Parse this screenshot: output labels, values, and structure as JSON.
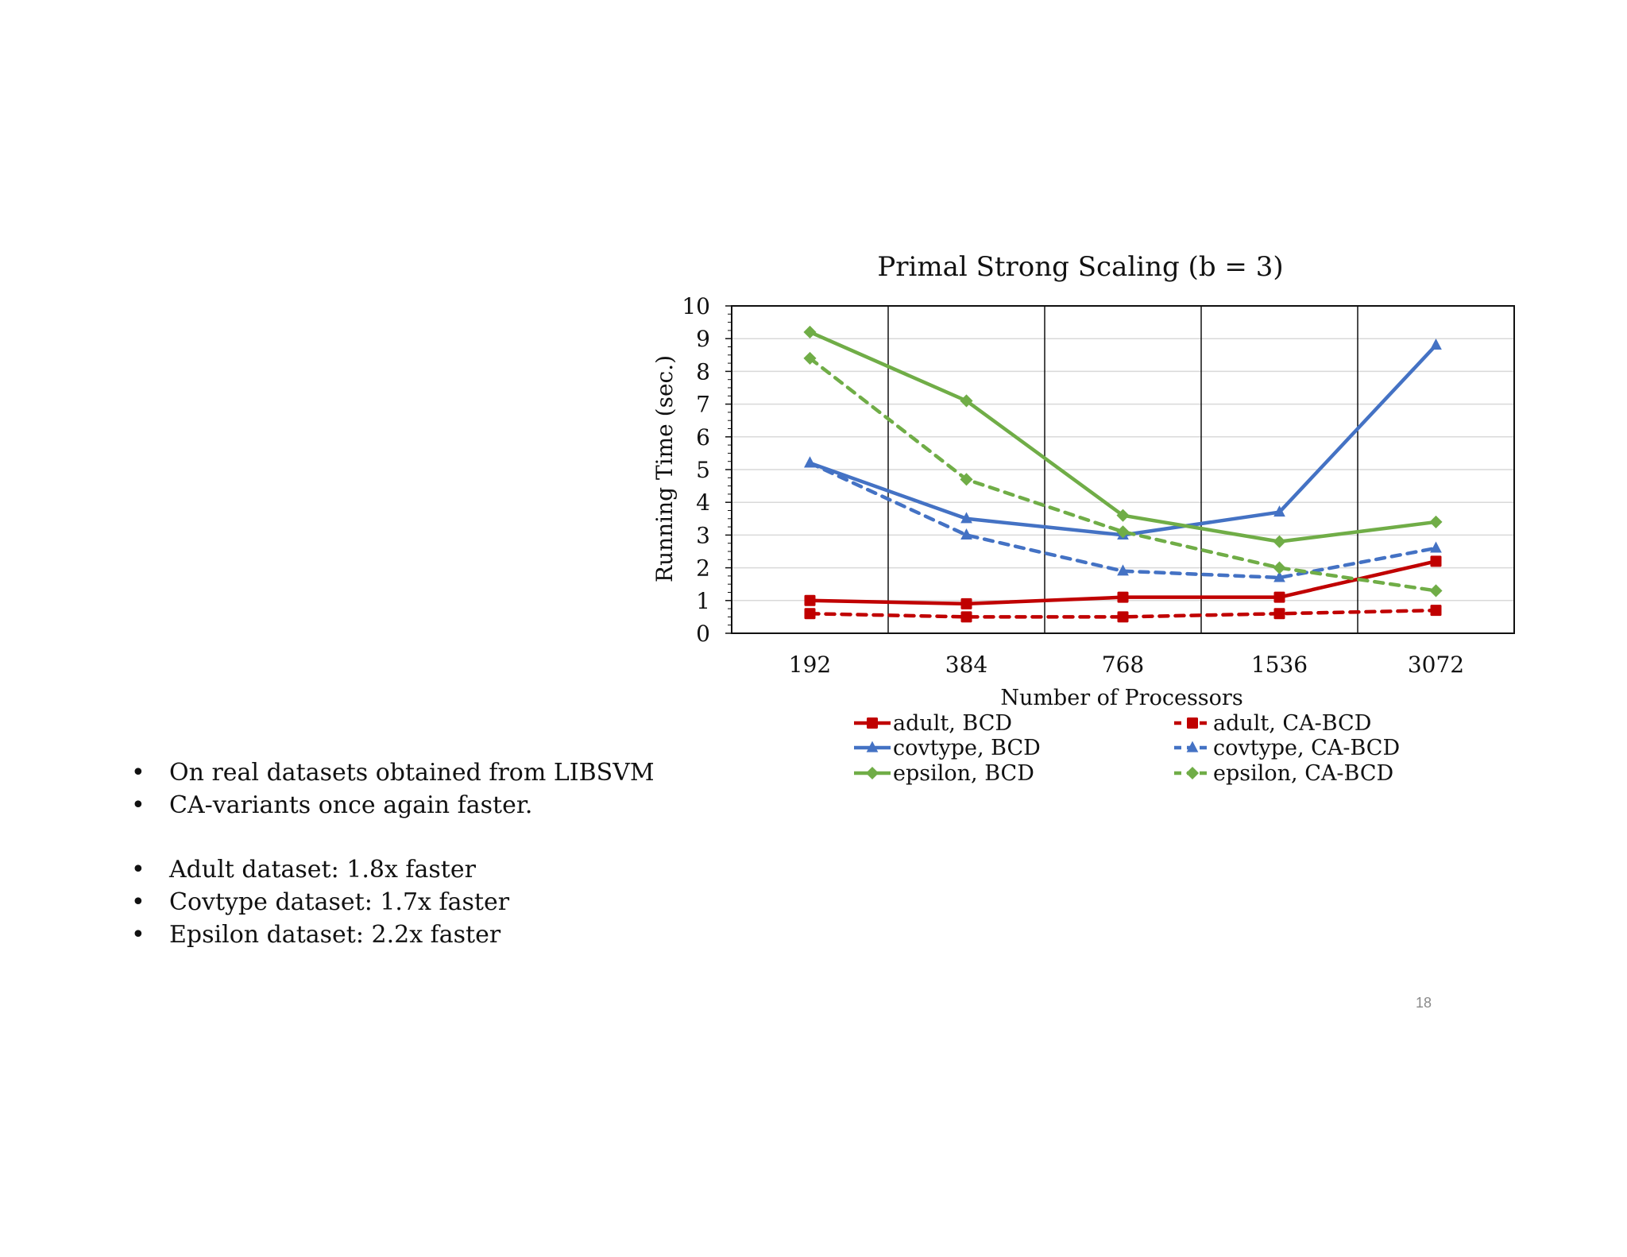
{
  "slide": {
    "bullets_group1": [
      "On real datasets obtained from LIBSVM",
      "CA-variants once again faster."
    ],
    "bullets_group2": [
      "Adult dataset: 1.8x faster",
      "Covtype dataset: 1.7x faster",
      "Epsilon dataset: 2.2x faster"
    ],
    "page_number": "18"
  },
  "chart_data": {
    "type": "line",
    "title": "Primal Strong Scaling (b = 3)",
    "xlabel": "Number of Processors",
    "ylabel": "Running Time (sec.)",
    "categories": [
      "192",
      "384",
      "768",
      "1536",
      "3072"
    ],
    "ylim": [
      0,
      10
    ],
    "yticks": [
      0,
      1,
      2,
      3,
      4,
      5,
      6,
      7,
      8,
      9,
      10
    ],
    "grid": true,
    "legend_position": "bottom",
    "series": [
      {
        "name": "adult, BCD",
        "values": [
          1.0,
          0.9,
          1.1,
          1.1,
          2.2
        ],
        "color": "#c00000",
        "dash": false,
        "marker": "square"
      },
      {
        "name": "adult, CA-BCD",
        "values": [
          0.6,
          0.5,
          0.5,
          0.6,
          0.7
        ],
        "color": "#c00000",
        "dash": true,
        "marker": "square"
      },
      {
        "name": "covtype, BCD",
        "values": [
          5.2,
          3.5,
          3.0,
          3.7,
          8.8
        ],
        "color": "#4472c4",
        "dash": false,
        "marker": "triangle"
      },
      {
        "name": "covtype, CA-BCD",
        "values": [
          5.2,
          3.0,
          1.9,
          1.7,
          2.6
        ],
        "color": "#4472c4",
        "dash": true,
        "marker": "triangle"
      },
      {
        "name": "epsilon, BCD",
        "values": [
          9.2,
          7.1,
          3.6,
          2.8,
          3.4
        ],
        "color": "#70ad47",
        "dash": false,
        "marker": "diamond"
      },
      {
        "name": "epsilon, CA-BCD",
        "values": [
          8.4,
          4.7,
          3.1,
          2.0,
          1.3
        ],
        "color": "#70ad47",
        "dash": true,
        "marker": "diamond"
      }
    ]
  }
}
